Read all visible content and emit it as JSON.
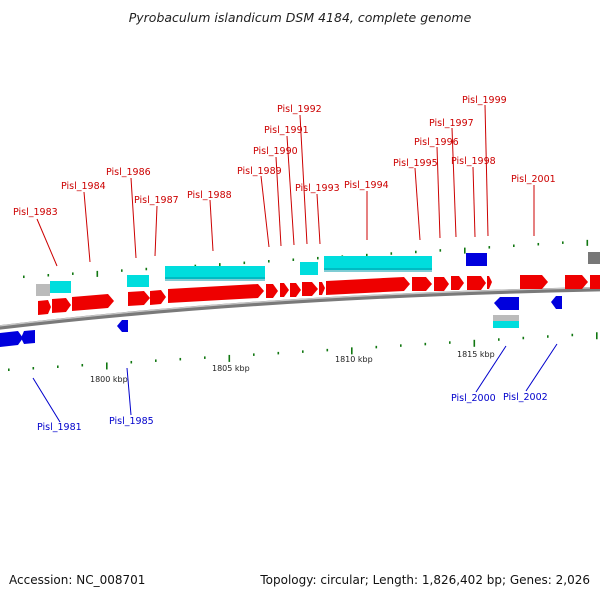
{
  "title": "Pyrobaculum islandicum DSM 4184, complete genome",
  "footer": {
    "accession": "Accession: NC_008701",
    "topology": "Topology: circular; Length: 1,826,402 bp; Genes: 2,026"
  },
  "scale_labels": [
    "1800 kbp",
    "1805 kbp",
    "1810 kbp",
    "1815 kbp"
  ],
  "colors": {
    "forward_cds": "#ee0000",
    "reverse_cds": "#0000dd",
    "rna": "#00dddd",
    "other": "#bbbbbb",
    "backbone": "#888888",
    "ticks": "#117711",
    "label_forward": "#cc0000",
    "label_reverse": "#0000cc"
  },
  "genes_forward_labels": [
    "Pisl_1983",
    "Pisl_1984",
    "Pisl_1986",
    "Pisl_1987",
    "Pisl_1988",
    "Pisl_1989",
    "Pisl_1990",
    "Pisl_1991",
    "Pisl_1992",
    "Pisl_1993",
    "Pisl_1994",
    "Pisl_1995",
    "Pisl_1996",
    "Pisl_1997",
    "Pisl_1998",
    "Pisl_1999",
    "Pisl_2001"
  ],
  "genes_reverse_labels": [
    "Pisl_1981",
    "Pisl_1985",
    "Pisl_2000",
    "Pisl_2002"
  ]
}
